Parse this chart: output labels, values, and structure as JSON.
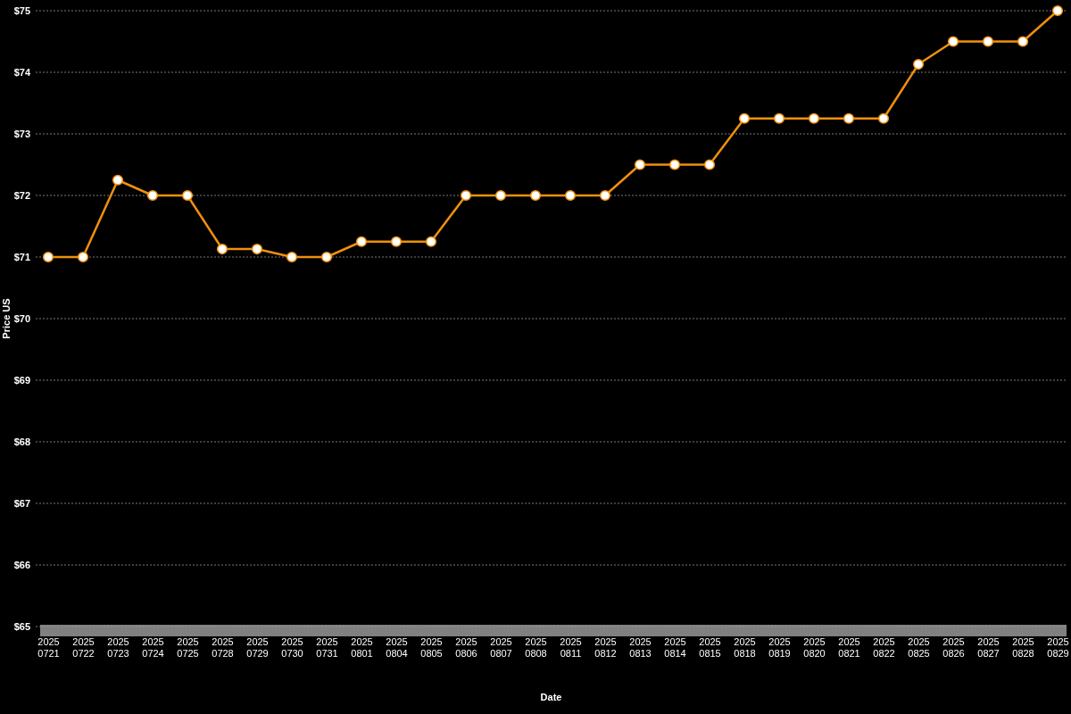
{
  "chart_data": {
    "type": "line",
    "xlabel": "Date",
    "ylabel": "Price US",
    "categories": [
      "20250721",
      "20250722",
      "20250723",
      "20250724",
      "20250725",
      "20250728",
      "20250729",
      "20250730",
      "20250731",
      "20250801",
      "20250804",
      "20250805",
      "20250806",
      "20250807",
      "20250808",
      "20250811",
      "20250812",
      "20250813",
      "20250814",
      "20250815",
      "20250818",
      "20250819",
      "20250820",
      "20250821",
      "20250822",
      "20250825",
      "20250826",
      "20250827",
      "20250828",
      "20250829"
    ],
    "series": [
      {
        "color": "#f0900c",
        "values": [
          71,
          71,
          72.25,
          72,
          72,
          71.13,
          71.13,
          71,
          71,
          71.25,
          71.25,
          71.25,
          72,
          72,
          72,
          72,
          72,
          72.5,
          72.5,
          72.5,
          73.25,
          73.25,
          73.25,
          73.25,
          73.25,
          74.13,
          74.5,
          74.5,
          74.5,
          75
        ]
      }
    ],
    "ylim": [
      65,
      75
    ],
    "yticks": [
      {
        "value": 65,
        "label": "$65"
      },
      {
        "value": 66,
        "label": "$66"
      },
      {
        "value": 67,
        "label": "$67"
      },
      {
        "value": 68,
        "label": "$68"
      },
      {
        "value": 69,
        "label": "$69"
      },
      {
        "value": 70,
        "label": "$70"
      },
      {
        "value": 71,
        "label": "$71"
      },
      {
        "value": 72,
        "label": "$72"
      },
      {
        "value": 73,
        "label": "$73"
      },
      {
        "value": 74,
        "label": "$74"
      },
      {
        "value": 75,
        "label": "$75"
      }
    ],
    "grid": "y",
    "marker": "circle",
    "line_style": "solid"
  }
}
